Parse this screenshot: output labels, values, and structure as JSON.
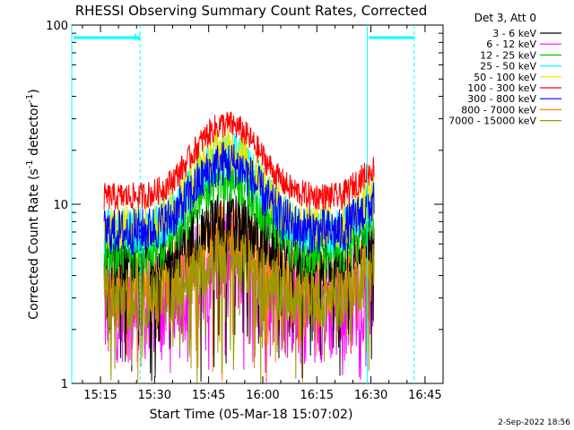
{
  "chart_data": {
    "type": "line",
    "title": "RHESSI Observing Summary Count Rates, Corrected",
    "xlabel": "Start Time (05-Mar-18 15:07:02)",
    "ylabel_main": "Corrected Count Rate (s",
    "ylabel_sup1": "-1",
    "ylabel_mid": " detector",
    "ylabel_sup2": "-1",
    "ylabel_end": ")",
    "yscale": "log",
    "ylim": [
      1,
      100
    ],
    "xlim": [
      "15:07:02",
      "16:50:00"
    ],
    "x_ticks": [
      "15:15",
      "15:30",
      "15:45",
      "16:00",
      "16:15",
      "16:30",
      "16:45"
    ],
    "x_tick_minutes": [
      915,
      930,
      945,
      960,
      975,
      990,
      1005
    ],
    "y_ticks": [
      "1",
      "10",
      "100"
    ],
    "y_tick_values": [
      1,
      10,
      100
    ],
    "legend_title": "Det 3, Att 0",
    "legend_position": "right",
    "night_marker": "N",
    "series": [
      {
        "name": "3 - 6 keV",
        "color": "#000000",
        "base": 5,
        "amp": 3,
        "noise": 0.4
      },
      {
        "name": "6 - 12 keV",
        "color": "#ff00ff",
        "base": 2.6,
        "amp": 2.5,
        "noise": 0.7
      },
      {
        "name": "12 - 25 keV",
        "color": "#00cc00",
        "base": 5.5,
        "amp": 9,
        "noise": 0.35
      },
      {
        "name": "25 - 50 keV",
        "color": "#00ffff",
        "base": 7,
        "amp": 12,
        "noise": 0.3
      },
      {
        "name": "50 - 100 keV",
        "color": "#e6e600",
        "base": 7.5,
        "amp": 13,
        "noise": 0.3
      },
      {
        "name": "100 - 300 keV",
        "color": "#ff0000",
        "base": 11,
        "amp": 17,
        "noise": 0.18
      },
      {
        "name": "300 - 800 keV",
        "color": "#0000ff",
        "base": 7,
        "amp": 10,
        "noise": 0.3
      },
      {
        "name": "800 - 7000 keV",
        "color": "#ff8000",
        "base": 3.5,
        "amp": 3.5,
        "noise": 0.45
      },
      {
        "name": "7000 - 15000 keV",
        "color": "#999900",
        "base": 3,
        "amp": 2,
        "noise": 0.4
      }
    ],
    "data_start": "15:16",
    "data_end": "16:31",
    "peak_time": "15:50",
    "night_intervals": [
      [
        "15:07:02",
        "15:26"
      ],
      [
        "16:29",
        "16:42"
      ]
    ]
  },
  "footer": {
    "timestamp": "2-Sep-2022 18:56"
  }
}
